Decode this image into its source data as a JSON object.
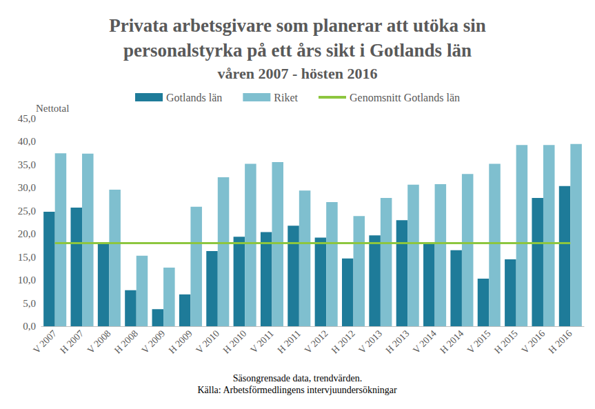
{
  "chart_data": {
    "type": "bar",
    "title": "Privata arbetsgivare som planerar att utöka sin\npersonalstyrka på ett års sikt i Gotlands län",
    "subtitle": "våren 2007 - hösten 2016",
    "y_label": "Nettotal",
    "notes": [
      "Säsongrensade data, trendvärden.",
      "Källa: Arbetsförmedlingens intervjuundersökningar"
    ],
    "categories": [
      "V 2007",
      "H 2007",
      "V 2008",
      "H 2008",
      "V 2009",
      "H 2009",
      "V 2010",
      "H 2010",
      "V 2011",
      "H 2011",
      "V 2012",
      "H 2012",
      "V 2013",
      "H 2013",
      "V 2014",
      "H 2014",
      "V 2015",
      "H 2015",
      "V 2016",
      "H 2016"
    ],
    "series": [
      {
        "name": "Gotlands län",
        "type": "bar",
        "color": "#1e7b99",
        "values": [
          24.8,
          25.7,
          18.0,
          7.8,
          3.7,
          6.9,
          16.3,
          19.4,
          20.4,
          21.8,
          19.2,
          14.7,
          19.7,
          23.0,
          18.0,
          16.5,
          10.3,
          14.5,
          27.8,
          30.4
        ]
      },
      {
        "name": "Riket",
        "type": "bar",
        "color": "#7fbfcf",
        "values": [
          37.5,
          37.4,
          29.6,
          15.3,
          12.7,
          25.9,
          32.3,
          35.2,
          35.6,
          29.4,
          26.9,
          23.9,
          27.8,
          30.7,
          30.8,
          33.0,
          35.2,
          39.3,
          39.3,
          39.5
        ]
      },
      {
        "name": "Genomsnitt Gotlands län",
        "type": "line",
        "color": "#8dc63f",
        "values": [
          18.0,
          18.0,
          18.0,
          18.0,
          18.0,
          18.0,
          18.0,
          18.0,
          18.0,
          18.0,
          18.0,
          18.0,
          18.0,
          18.0,
          18.0,
          18.0,
          18.0,
          18.0,
          18.0,
          18.0
        ]
      }
    ],
    "ylim": [
      0,
      45
    ],
    "yticks": [
      {
        "value": 0,
        "label": "0,0"
      },
      {
        "value": 5,
        "label": "5,0"
      },
      {
        "value": 10,
        "label": "10,0"
      },
      {
        "value": 15,
        "label": "15,0"
      },
      {
        "value": 20,
        "label": "20,0"
      },
      {
        "value": 25,
        "label": "25,0"
      },
      {
        "value": 30,
        "label": "30,0"
      },
      {
        "value": 35,
        "label": "35,0"
      },
      {
        "value": 40,
        "label": "40,0"
      },
      {
        "value": 45,
        "label": "45,0"
      }
    ],
    "grid": false,
    "legend": "top"
  }
}
